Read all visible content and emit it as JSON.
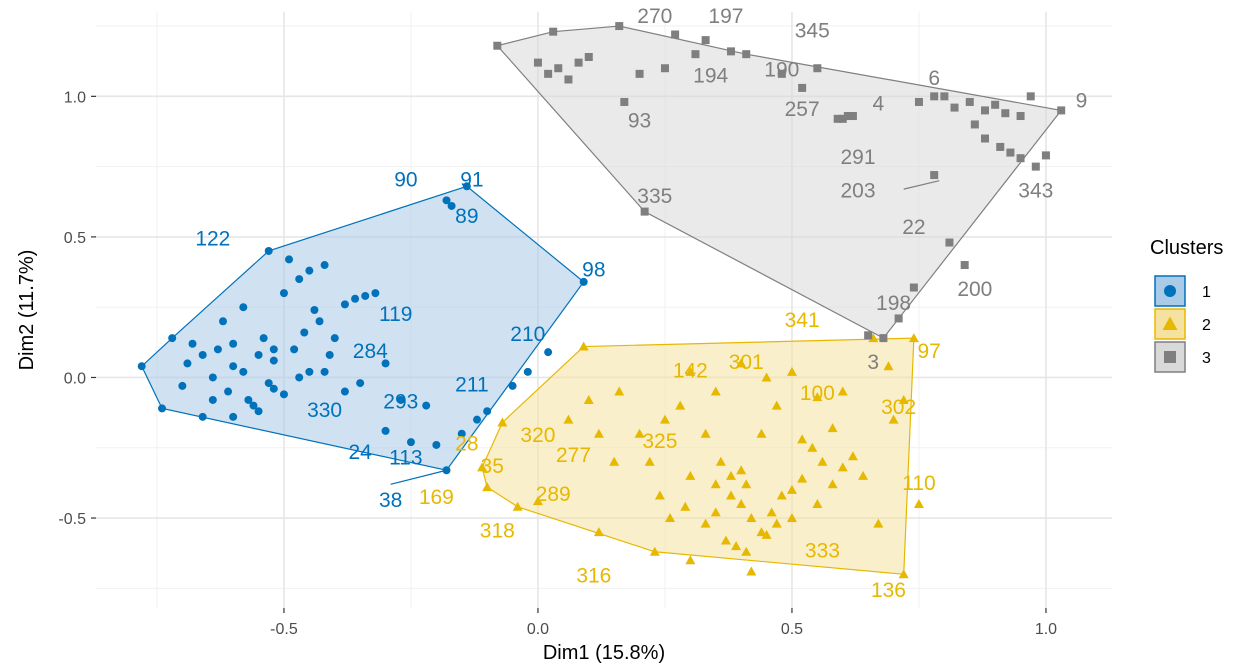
{
  "chart_data": {
    "type": "scatter",
    "xlabel": "Dim1 (15.8%)",
    "ylabel": "Dim2 (11.7%)",
    "xlim": [
      -0.87,
      1.13
    ],
    "ylim": [
      -0.82,
      1.3
    ],
    "x_ticks": [
      -0.5,
      0.0,
      0.5,
      1.0
    ],
    "x_tick_labels": [
      "-0.5",
      "0.0",
      "0.5",
      "1.0"
    ],
    "y_ticks": [
      -0.5,
      0.0,
      0.5,
      1.0
    ],
    "y_tick_labels": [
      "-0.5",
      "0.0",
      "0.5",
      "1.0"
    ],
    "grid": true,
    "legend": {
      "title": "Clusters",
      "position": "right",
      "entries": [
        "1",
        "2",
        "3"
      ]
    },
    "series": [
      {
        "name": "1",
        "color": "#0072BB",
        "fill": "#a9cbe8",
        "marker": "circle",
        "hull": [
          [
            -0.78,
            0.04
          ],
          [
            -0.74,
            -0.11
          ],
          [
            -0.18,
            -0.33
          ],
          [
            0.09,
            0.34
          ],
          [
            -0.14,
            0.68
          ],
          [
            -0.53,
            0.45
          ],
          [
            -0.72,
            0.14
          ]
        ],
        "points": [
          [
            -0.78,
            0.04
          ],
          [
            -0.74,
            -0.11
          ],
          [
            -0.18,
            -0.33
          ],
          [
            0.09,
            0.34
          ],
          [
            -0.14,
            0.68
          ],
          [
            -0.53,
            0.45
          ],
          [
            -0.72,
            0.14
          ],
          [
            -0.18,
            0.63
          ],
          [
            -0.17,
            0.61
          ],
          [
            -0.69,
            0.05
          ],
          [
            -0.66,
            0.08
          ],
          [
            -0.64,
            0.0
          ],
          [
            -0.63,
            0.1
          ],
          [
            -0.61,
            -0.05
          ],
          [
            -0.6,
            0.12
          ],
          [
            -0.58,
            0.02
          ],
          [
            -0.57,
            -0.08
          ],
          [
            -0.55,
            0.08
          ],
          [
            -0.54,
            0.14
          ],
          [
            -0.53,
            -0.02
          ],
          [
            -0.52,
            0.06
          ],
          [
            -0.5,
            -0.06
          ],
          [
            -0.48,
            0.1
          ],
          [
            -0.46,
            0.16
          ],
          [
            -0.45,
            0.02
          ],
          [
            -0.43,
            0.2
          ],
          [
            -0.41,
            0.08
          ],
          [
            -0.4,
            0.14
          ],
          [
            -0.38,
            0.26
          ],
          [
            -0.36,
            0.28
          ],
          [
            -0.34,
            0.29
          ],
          [
            -0.32,
            0.3
          ],
          [
            -0.62,
            0.2
          ],
          [
            -0.66,
            -0.14
          ],
          [
            -0.6,
            -0.14
          ],
          [
            -0.56,
            -0.1
          ],
          [
            -0.52,
            -0.04
          ],
          [
            -0.5,
            0.3
          ],
          [
            -0.47,
            0.35
          ],
          [
            -0.45,
            0.38
          ],
          [
            -0.42,
            0.4
          ],
          [
            -0.49,
            0.42
          ],
          [
            -0.44,
            0.24
          ],
          [
            -0.58,
            0.25
          ],
          [
            -0.7,
            -0.03
          ],
          [
            -0.68,
            0.12
          ],
          [
            -0.64,
            -0.08
          ],
          [
            -0.6,
            0.04
          ],
          [
            -0.55,
            -0.12
          ],
          [
            -0.52,
            0.1
          ],
          [
            -0.47,
            0.0
          ],
          [
            -0.42,
            0.02
          ],
          [
            -0.38,
            -0.05
          ],
          [
            -0.3,
            -0.19
          ],
          [
            -0.25,
            -0.23
          ],
          [
            -0.2,
            -0.24
          ],
          [
            -0.15,
            -0.2
          ],
          [
            -0.1,
            -0.12
          ],
          [
            -0.05,
            -0.03
          ],
          [
            -0.02,
            0.02
          ],
          [
            0.02,
            0.09
          ],
          [
            -0.12,
            -0.15
          ],
          [
            -0.35,
            -0.02
          ],
          [
            -0.3,
            0.05
          ],
          [
            -0.27,
            -0.08
          ],
          [
            -0.22,
            -0.1
          ]
        ]
      },
      {
        "name": "2",
        "color": "#E7B800",
        "fill": "#f6e2a0",
        "marker": "triangle",
        "hull": [
          [
            0.09,
            0.11
          ],
          [
            0.74,
            0.14
          ],
          [
            0.72,
            -0.7
          ],
          [
            0.23,
            -0.62
          ],
          [
            -0.04,
            -0.46
          ],
          [
            -0.1,
            -0.39
          ],
          [
            -0.11,
            -0.32
          ],
          [
            -0.07,
            -0.16
          ]
        ],
        "points": [
          [
            0.09,
            0.11
          ],
          [
            0.74,
            0.14
          ],
          [
            0.72,
            -0.7
          ],
          [
            0.23,
            -0.62
          ],
          [
            -0.04,
            -0.46
          ],
          [
            -0.1,
            -0.39
          ],
          [
            -0.11,
            -0.32
          ],
          [
            -0.07,
            -0.16
          ],
          [
            0.66,
            0.14
          ],
          [
            0.69,
            0.04
          ],
          [
            0.72,
            -0.08
          ],
          [
            0.75,
            -0.45
          ],
          [
            0.67,
            -0.52
          ],
          [
            0.42,
            -0.69
          ],
          [
            0.3,
            -0.65
          ],
          [
            0.12,
            -0.55
          ],
          [
            0.0,
            -0.44
          ],
          [
            0.06,
            -0.15
          ],
          [
            0.12,
            -0.2
          ],
          [
            0.2,
            -0.2
          ],
          [
            0.28,
            -0.1
          ],
          [
            0.35,
            -0.05
          ],
          [
            0.3,
            0.02
          ],
          [
            0.4,
            0.05
          ],
          [
            0.45,
            0.0
          ],
          [
            0.5,
            0.02
          ],
          [
            0.55,
            -0.07
          ],
          [
            0.6,
            -0.05
          ],
          [
            0.22,
            -0.3
          ],
          [
            0.3,
            -0.35
          ],
          [
            0.35,
            -0.38
          ],
          [
            0.38,
            -0.42
          ],
          [
            0.4,
            -0.45
          ],
          [
            0.42,
            -0.5
          ],
          [
            0.44,
            -0.55
          ],
          [
            0.46,
            -0.48
          ],
          [
            0.48,
            -0.42
          ],
          [
            0.5,
            -0.4
          ],
          [
            0.52,
            -0.36
          ],
          [
            0.35,
            -0.48
          ],
          [
            0.33,
            -0.52
          ],
          [
            0.37,
            -0.58
          ],
          [
            0.39,
            -0.6
          ],
          [
            0.41,
            -0.62
          ],
          [
            0.45,
            -0.56
          ],
          [
            0.47,
            -0.52
          ],
          [
            0.5,
            -0.5
          ],
          [
            0.55,
            -0.45
          ],
          [
            0.58,
            -0.38
          ],
          [
            0.6,
            -0.32
          ],
          [
            0.62,
            -0.28
          ],
          [
            0.64,
            -0.35
          ],
          [
            0.56,
            -0.3
          ],
          [
            0.54,
            -0.25
          ],
          [
            0.52,
            -0.22
          ],
          [
            0.44,
            -0.2
          ],
          [
            0.36,
            -0.3
          ],
          [
            0.4,
            -0.33
          ],
          [
            0.38,
            -0.35
          ],
          [
            0.41,
            -0.38
          ],
          [
            0.29,
            -0.46
          ],
          [
            0.26,
            -0.5
          ],
          [
            0.24,
            -0.42
          ],
          [
            0.15,
            -0.3
          ],
          [
            0.1,
            -0.08
          ],
          [
            0.16,
            -0.05
          ],
          [
            0.25,
            -0.15
          ],
          [
            0.33,
            -0.2
          ],
          [
            0.47,
            -0.1
          ],
          [
            0.58,
            -0.18
          ],
          [
            0.7,
            -0.15
          ]
        ]
      },
      {
        "name": "3",
        "color": "#7F7F7F",
        "fill": "#d9d9d9",
        "marker": "square",
        "hull": [
          [
            -0.08,
            1.18
          ],
          [
            0.03,
            1.23
          ],
          [
            0.16,
            1.25
          ],
          [
            0.41,
            1.15
          ],
          [
            1.03,
            0.95
          ],
          [
            0.68,
            0.14
          ],
          [
            0.21,
            0.59
          ]
        ],
        "points": [
          [
            -0.08,
            1.18
          ],
          [
            0.03,
            1.23
          ],
          [
            0.16,
            1.25
          ],
          [
            0.41,
            1.15
          ],
          [
            1.03,
            0.95
          ],
          [
            0.68,
            0.14
          ],
          [
            0.21,
            0.59
          ],
          [
            0.27,
            1.22
          ],
          [
            0.33,
            1.2
          ],
          [
            0.38,
            1.16
          ],
          [
            0.31,
            1.15
          ],
          [
            0.25,
            1.1
          ],
          [
            0.2,
            1.08
          ],
          [
            0.17,
            0.98
          ],
          [
            0.52,
            1.03
          ],
          [
            0.55,
            1.1
          ],
          [
            0.48,
            1.08
          ],
          [
            0.59,
            0.92
          ],
          [
            0.6,
            0.92
          ],
          [
            0.61,
            0.93
          ],
          [
            0.62,
            0.93
          ],
          [
            0.75,
            0.98
          ],
          [
            0.78,
            1.0
          ],
          [
            0.8,
            1.0
          ],
          [
            0.82,
            0.96
          ],
          [
            0.85,
            0.98
          ],
          [
            0.88,
            0.95
          ],
          [
            0.9,
            0.97
          ],
          [
            0.92,
            0.94
          ],
          [
            0.95,
            0.93
          ],
          [
            0.97,
            1.0
          ],
          [
            0.86,
            0.9
          ],
          [
            0.88,
            0.85
          ],
          [
            0.91,
            0.82
          ],
          [
            0.93,
            0.8
          ],
          [
            0.95,
            0.78
          ],
          [
            0.98,
            0.75
          ],
          [
            1.0,
            0.79
          ],
          [
            0.78,
            0.72
          ],
          [
            0.81,
            0.48
          ],
          [
            0.84,
            0.4
          ],
          [
            0.74,
            0.32
          ],
          [
            0.71,
            0.21
          ],
          [
            0.65,
            0.15
          ],
          [
            0.02,
            1.08
          ],
          [
            0.04,
            1.1
          ],
          [
            0.06,
            1.06
          ],
          [
            0.08,
            1.12
          ],
          [
            0.1,
            1.14
          ],
          [
            0.0,
            1.12
          ]
        ]
      }
    ],
    "labels": [
      {
        "text": "91",
        "x": -0.13,
        "y": 0.68,
        "series": 0
      },
      {
        "text": "90",
        "x": -0.26,
        "y": 0.68,
        "series": 0
      },
      {
        "text": "89",
        "x": -0.14,
        "y": 0.55,
        "series": 0
      },
      {
        "text": "122",
        "x": -0.64,
        "y": 0.47,
        "series": 0
      },
      {
        "text": "98",
        "x": 0.11,
        "y": 0.36,
        "series": 0
      },
      {
        "text": "119",
        "x": -0.28,
        "y": 0.2,
        "series": 0
      },
      {
        "text": "210",
        "x": -0.02,
        "y": 0.13,
        "series": 0
      },
      {
        "text": "284",
        "x": -0.33,
        "y": 0.07,
        "series": 0
      },
      {
        "text": "211",
        "x": -0.13,
        "y": -0.05,
        "series": 0
      },
      {
        "text": "293",
        "x": -0.27,
        "y": -0.11,
        "series": 0
      },
      {
        "text": "330",
        "x": -0.42,
        "y": -0.14,
        "series": 0
      },
      {
        "text": "24",
        "x": -0.35,
        "y": -0.29,
        "series": 0
      },
      {
        "text": "113",
        "x": -0.26,
        "y": -0.31,
        "series": 0
      },
      {
        "text": "38",
        "x": -0.29,
        "y": -0.46,
        "series": 0
      },
      {
        "text": "341",
        "x": 0.52,
        "y": 0.18,
        "series": 1
      },
      {
        "text": "97",
        "x": 0.77,
        "y": 0.07,
        "series": 1
      },
      {
        "text": "301",
        "x": 0.41,
        "y": 0.03,
        "series": 1
      },
      {
        "text": "142",
        "x": 0.3,
        "y": 0.0,
        "series": 1
      },
      {
        "text": "100",
        "x": 0.55,
        "y": -0.08,
        "series": 1
      },
      {
        "text": "302",
        "x": 0.71,
        "y": -0.13,
        "series": 1
      },
      {
        "text": "320",
        "x": 0.0,
        "y": -0.23,
        "series": 1
      },
      {
        "text": "325",
        "x": 0.24,
        "y": -0.25,
        "series": 1
      },
      {
        "text": "28",
        "x": -0.14,
        "y": -0.26,
        "series": 1
      },
      {
        "text": "277",
        "x": 0.07,
        "y": -0.3,
        "series": 1
      },
      {
        "text": "35",
        "x": -0.09,
        "y": -0.34,
        "series": 1
      },
      {
        "text": "110",
        "x": 0.75,
        "y": -0.4,
        "series": 1
      },
      {
        "text": "169",
        "x": -0.2,
        "y": -0.45,
        "series": 1
      },
      {
        "text": "289",
        "x": 0.03,
        "y": -0.44,
        "series": 1
      },
      {
        "text": "318",
        "x": -0.08,
        "y": -0.57,
        "series": 1
      },
      {
        "text": "333",
        "x": 0.56,
        "y": -0.64,
        "series": 1
      },
      {
        "text": "316",
        "x": 0.11,
        "y": -0.73,
        "series": 1
      },
      {
        "text": "136",
        "x": 0.69,
        "y": -0.78,
        "series": 1
      },
      {
        "text": "270",
        "x": 0.23,
        "y": 1.26,
        "series": 2
      },
      {
        "text": "197",
        "x": 0.37,
        "y": 1.26,
        "series": 2
      },
      {
        "text": "345",
        "x": 0.54,
        "y": 1.21,
        "series": 2
      },
      {
        "text": "194",
        "x": 0.34,
        "y": 1.05,
        "series": 2
      },
      {
        "text": "190",
        "x": 0.48,
        "y": 1.07,
        "series": 2
      },
      {
        "text": "6",
        "x": 0.78,
        "y": 1.04,
        "series": 2
      },
      {
        "text": "9",
        "x": 1.07,
        "y": 0.96,
        "series": 2
      },
      {
        "text": "4",
        "x": 0.67,
        "y": 0.95,
        "series": 2
      },
      {
        "text": "257",
        "x": 0.52,
        "y": 0.93,
        "series": 2
      },
      {
        "text": "93",
        "x": 0.2,
        "y": 0.89,
        "series": 2
      },
      {
        "text": "291",
        "x": 0.63,
        "y": 0.76,
        "series": 2
      },
      {
        "text": "203",
        "x": 0.63,
        "y": 0.64,
        "series": 2
      },
      {
        "text": "343",
        "x": 0.98,
        "y": 0.64,
        "series": 2
      },
      {
        "text": "335",
        "x": 0.23,
        "y": 0.62,
        "series": 2
      },
      {
        "text": "22",
        "x": 0.74,
        "y": 0.51,
        "series": 2
      },
      {
        "text": "200",
        "x": 0.86,
        "y": 0.29,
        "series": 2
      },
      {
        "text": "198",
        "x": 0.7,
        "y": 0.24,
        "series": 2
      },
      {
        "text": "3",
        "x": 0.66,
        "y": 0.03,
        "series": 2
      }
    ],
    "leaders": [
      {
        "x1": -0.29,
        "y1": -0.38,
        "x2": -0.18,
        "y2": -0.33,
        "series": 0
      },
      {
        "x1": 0.72,
        "y1": 0.67,
        "x2": 0.79,
        "y2": 0.7,
        "series": 2
      }
    ]
  }
}
